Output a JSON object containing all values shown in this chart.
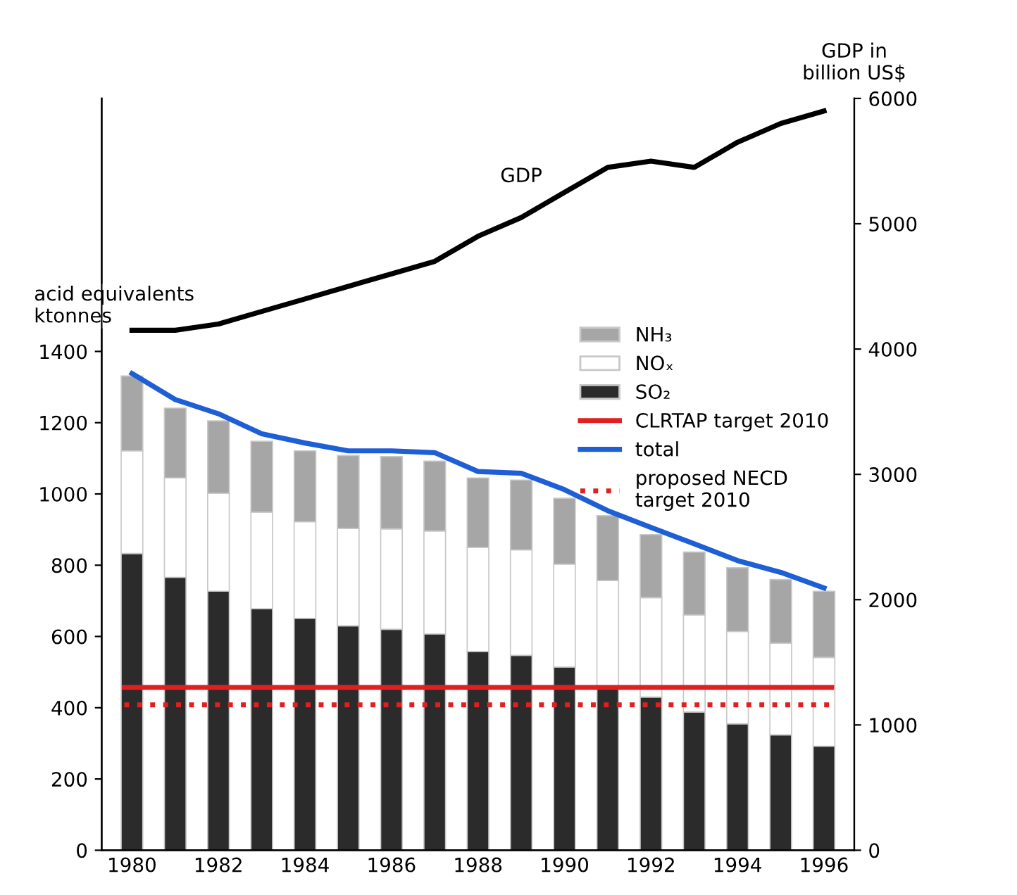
{
  "chart_data": {
    "type": "bar",
    "stacked": true,
    "categories": [
      "1980",
      null,
      "1982",
      null,
      "1984",
      null,
      "1986",
      null,
      "1988",
      null,
      "1990",
      null,
      "1992",
      null,
      "1994",
      null,
      "1996"
    ],
    "ylabel": "acid equivalents\nktonnes",
    "y2label": "GDP in\nbillion US$",
    "ylim": [
      0,
      2110
    ],
    "yticks": [
      0,
      200,
      400,
      600,
      800,
      1000,
      1200,
      1400
    ],
    "y2lim": [
      0,
      6000
    ],
    "y2ticks": [
      0,
      1000,
      2000,
      3000,
      4000,
      5000,
      6000
    ],
    "series": [
      {
        "name": "SO₂",
        "color": "#2b2b2b",
        "values": [
          833,
          766,
          727,
          678,
          651,
          630,
          620,
          607,
          558,
          547,
          514,
          454,
          430,
          388,
          355,
          324,
          292
        ]
      },
      {
        "name": "NOₓ",
        "color": "#ffffff",
        "values": [
          288,
          279,
          275,
          271,
          271,
          273,
          282,
          289,
          292,
          296,
          289,
          303,
          279,
          272,
          259,
          257,
          249
        ]
      },
      {
        "name": "NH₃",
        "color": "#a6a6a6",
        "values": [
          210,
          196,
          203,
          199,
          199,
          205,
          203,
          196,
          195,
          196,
          185,
          182,
          177,
          177,
          179,
          179,
          186
        ]
      },
      {
        "name": "total",
        "type": "line",
        "color": "#1f5fd6",
        "values": [
          1338,
          1265,
          1225,
          1169,
          1143,
          1121,
          1121,
          1116,
          1063,
          1058,
          1012,
          953,
          906,
          860,
          813,
          780,
          736
        ]
      },
      {
        "name": "GDP",
        "type": "line",
        "axis": "y2",
        "color": "#000000",
        "values": [
          4150,
          4150,
          4200,
          4300,
          4400,
          4500,
          4600,
          4700,
          4900,
          5050,
          5250,
          5450,
          5500,
          5450,
          5650,
          5800,
          5900
        ]
      }
    ],
    "ref_lines": [
      {
        "axis": "y",
        "value": 457,
        "label": "CLRTAP target 2010",
        "color": "#e02020",
        "line_style": "solid"
      },
      {
        "axis": "y",
        "value": 408,
        "label": "proposed NECD\ntarget 2010",
        "color": "#e02020",
        "line_style": "dotted"
      }
    ],
    "legend": "top right",
    "grid": false
  }
}
